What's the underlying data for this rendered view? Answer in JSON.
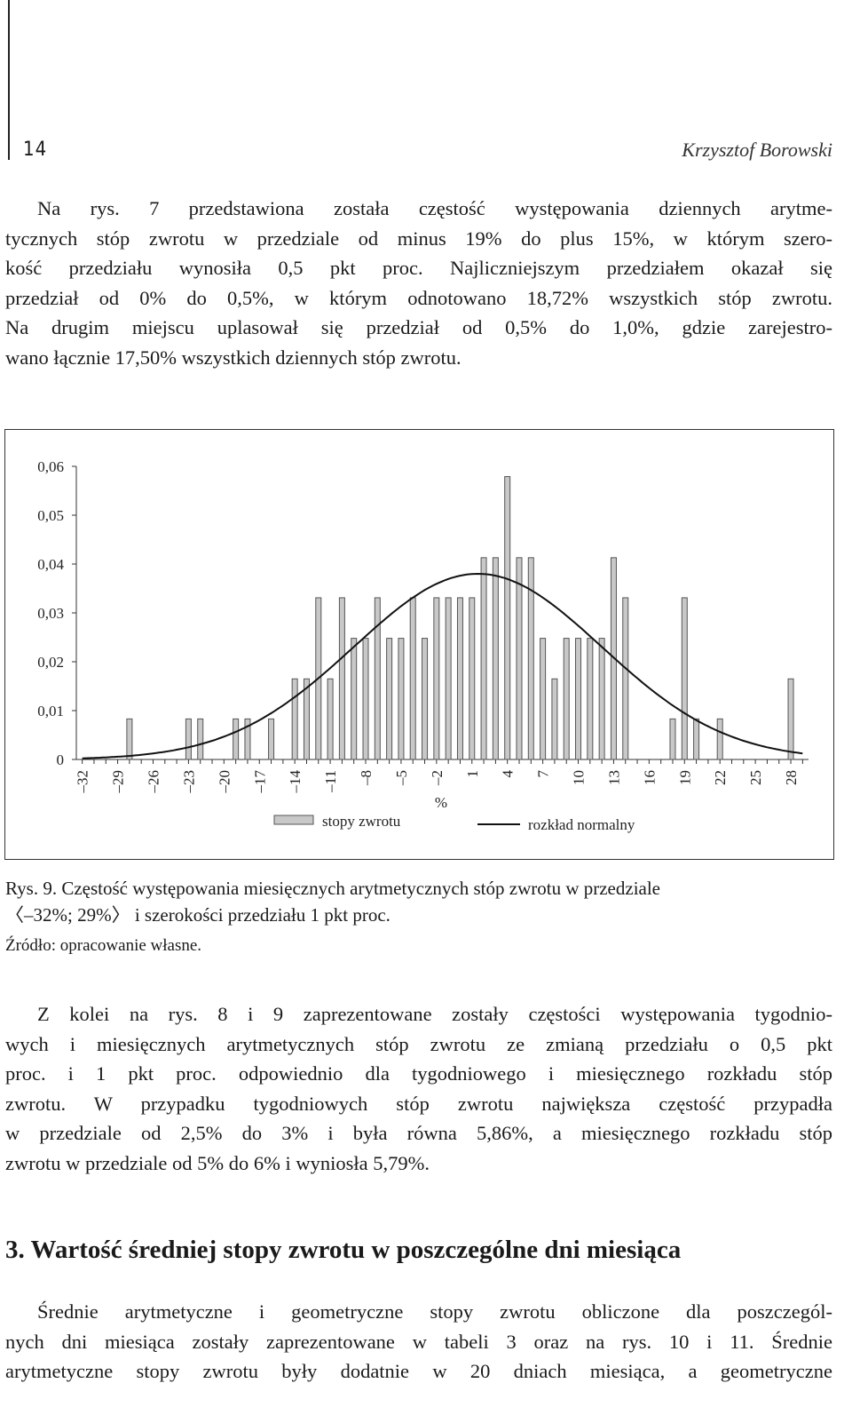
{
  "header": {
    "page_number": "14",
    "author": "Krzysztof Borowski"
  },
  "para1": [
    "Na rys. 7 przedstawiona została częstość występowania dziennych arytme-",
    "tycznych stóp zwrotu w przedziale od minus 19% do plus 15%, w którym szero-",
    "kość przedziału wynosiła 0,5 pkt proc. Najliczniejszym przedziałem okazał się",
    "przedział od 0% do 0,5%, w którym odnotowano 18,72% wszystkich stóp zwrotu.",
    "Na drugim miejscu uplasował się przedział od 0,5% do 1,0%, gdzie zarejestro-",
    "wano łącznie 17,50% wszystkich dziennych stóp zwrotu."
  ],
  "chart_data": {
    "type": "bar",
    "xlabel": "%",
    "ylim": [
      0,
      0.06
    ],
    "yticks": [
      "0",
      "0,01",
      "0,02",
      "0,03",
      "0,04",
      "0,05",
      "0,06"
    ],
    "xticks": [
      "–32",
      "–29",
      "–26",
      "–23",
      "–20",
      "–17",
      "–14",
      "–11",
      "–8",
      "–5",
      "–2",
      "1",
      "4",
      "7",
      "10",
      "13",
      "16",
      "19",
      "22",
      "25",
      "28"
    ],
    "x": [
      -32,
      -31,
      -30,
      -29,
      -28,
      -27,
      -26,
      -25,
      -24,
      -23,
      -22,
      -21,
      -20,
      -19,
      -18,
      -17,
      -16,
      -15,
      -14,
      -13,
      -12,
      -11,
      -10,
      -9,
      -8,
      -7,
      -6,
      -5,
      -4,
      -3,
      -2,
      -1,
      0,
      1,
      2,
      3,
      4,
      5,
      6,
      7,
      8,
      9,
      10,
      11,
      12,
      13,
      14,
      15,
      16,
      17,
      18,
      19,
      20,
      21,
      22,
      23,
      24,
      25,
      26,
      27,
      28,
      29
    ],
    "series": [
      {
        "name": "stopy zwrotu",
        "values": [
          0,
          0,
          0,
          0,
          0.0083,
          0,
          0,
          0,
          0,
          0.0083,
          0.0083,
          0,
          0,
          0.0083,
          0.0083,
          0,
          0.0083,
          0,
          0.0165,
          0.0165,
          0.0331,
          0.0165,
          0.0331,
          0.0248,
          0.0248,
          0.0331,
          0.0248,
          0.0248,
          0.0331,
          0.0248,
          0.0331,
          0.0331,
          0.0331,
          0.0331,
          0.0413,
          0.0413,
          0.0579,
          0.0413,
          0.0413,
          0.0248,
          0.0165,
          0.0248,
          0.0248,
          0.0248,
          0.0248,
          0.0413,
          0.0331,
          0,
          0,
          0,
          0.0083,
          0.0331,
          0.0083,
          0,
          0.0083,
          0,
          0,
          0,
          0,
          0,
          0.0165,
          0
        ]
      },
      {
        "name": "rozkład normalny",
        "type": "line",
        "mean": 1.5,
        "sd": 10.5
      }
    ],
    "legend_position": "bottom",
    "grid": false
  },
  "caption": {
    "line1": "Rys. 9. Częstość występowania miesięcznych arytmetycznych stóp zwrotu w przedziale",
    "line2": "〈–32%; 29%〉 i szerokości przedziału 1 pkt proc."
  },
  "source": "Źródło: opracowanie własne.",
  "para2": [
    "Z kolei na rys. 8 i 9 zaprezentowane zostały częstości występowania tygodnio-",
    "wych i miesięcznych arytmetycznych stóp zwrotu ze zmianą przedziału o 0,5 pkt",
    "proc. i 1 pkt proc. odpowiednio dla tygodniowego i miesięcznego rozkładu stóp",
    "zwrotu. W przypadku tygodniowych stóp zwrotu największa częstość przypadła",
    "w przedziale od 2,5% do 3% i była równa 5,86%, a miesięcznego rozkładu stóp",
    "zwrotu w przedziale od 5% do 6% i wyniosła 5,79%."
  ],
  "heading": "3. Wartość średniej stopy zwrotu w poszczególne dni miesiąca",
  "para3": [
    "Średnie arytmetyczne i geometryczne stopy zwrotu obliczone dla poszczegól-",
    "nych dni miesiąca zostały zaprezentowane w tabeli 3 oraz na rys. 10 i 11. Średnie",
    "arytmetyczne stopy zwrotu były dodatnie w 20 dniach miesiąca, a geometryczne"
  ]
}
